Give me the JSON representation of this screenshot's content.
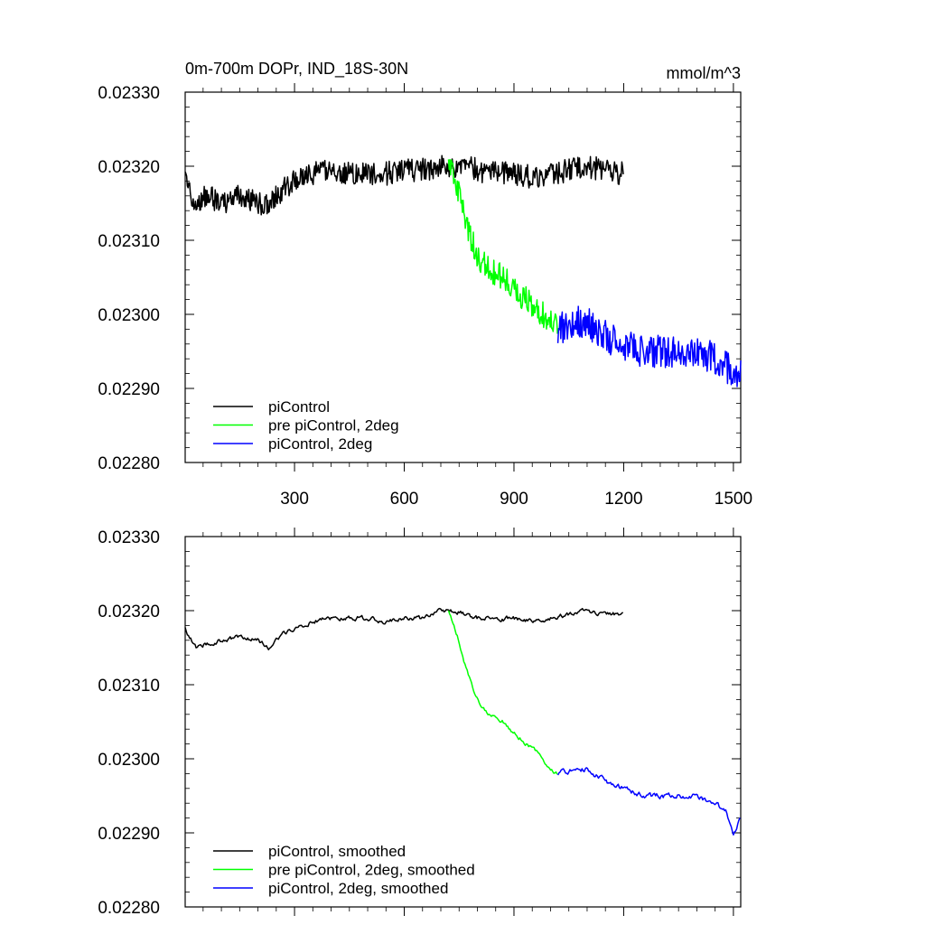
{
  "chart_data": [
    {
      "type": "line",
      "title": "0m-700m DOPr, IND_18S-30N",
      "units": "mmol/m^3",
      "xlim": [
        1,
        1520
      ],
      "ylim": [
        0.0228,
        0.0233
      ],
      "x_ticks": [
        300,
        600,
        900,
        1200,
        1500
      ],
      "x_tick_labels": [
        "300",
        "600",
        "900",
        "1200",
        "1500"
      ],
      "y_ticks": [
        0.0228,
        0.0229,
        0.023,
        0.0231,
        0.0232,
        0.0233
      ],
      "y_tick_labels": [
        "0.02280",
        "0.02290",
        "0.02300",
        "0.02310",
        "0.02320",
        "0.02330"
      ],
      "legend_position": "bottom-left",
      "series": [
        {
          "name": "piControl",
          "color": "#000000",
          "noise": 1.6e-05,
          "points": [
            [
              1,
              0.02318
            ],
            [
              30,
              0.02315
            ],
            [
              60,
              0.02316
            ],
            [
              100,
              0.02315
            ],
            [
              150,
              0.02316
            ],
            [
              200,
              0.02315
            ],
            [
              230,
              0.02315
            ],
            [
              270,
              0.02317
            ],
            [
              320,
              0.023185
            ],
            [
              350,
              0.02319
            ],
            [
              400,
              0.023195
            ],
            [
              450,
              0.02319
            ],
            [
              500,
              0.02319
            ],
            [
              550,
              0.02319
            ],
            [
              600,
              0.023195
            ],
            [
              650,
              0.023195
            ],
            [
              700,
              0.0232
            ],
            [
              750,
              0.0232
            ],
            [
              800,
              0.023195
            ],
            [
              850,
              0.02319
            ],
            [
              900,
              0.02319
            ],
            [
              950,
              0.023185
            ],
            [
              1000,
              0.02319
            ],
            [
              1050,
              0.023195
            ],
            [
              1100,
              0.0232
            ],
            [
              1150,
              0.023195
            ],
            [
              1200,
              0.02319
            ]
          ]
        },
        {
          "name": "pre piControl, 2deg",
          "color": "#00ff00",
          "noise": 1.8e-05,
          "points": [
            [
              721,
              0.02321
            ],
            [
              745,
              0.02317
            ],
            [
              770,
              0.02312
            ],
            [
              800,
              0.02308
            ],
            [
              830,
              0.02306
            ],
            [
              870,
              0.02305
            ],
            [
              910,
              0.02303
            ],
            [
              960,
              0.02301
            ],
            [
              1000,
              0.02299
            ],
            [
              1020,
              0.02298
            ]
          ]
        },
        {
          "name": "piControl, 2deg",
          "color": "#0000ff",
          "noise": 2.2e-05,
          "points": [
            [
              1020,
              0.02298
            ],
            [
              1060,
              0.02299
            ],
            [
              1100,
              0.02299
            ],
            [
              1150,
              0.02297
            ],
            [
              1200,
              0.02296
            ],
            [
              1250,
              0.02295
            ],
            [
              1300,
              0.02295
            ],
            [
              1350,
              0.02295
            ],
            [
              1400,
              0.02295
            ],
            [
              1450,
              0.02294
            ],
            [
              1480,
              0.02293
            ],
            [
              1500,
              0.022915
            ],
            [
              1520,
              0.02292
            ]
          ]
        }
      ]
    },
    {
      "type": "line",
      "xlim": [
        1,
        1520
      ],
      "ylim": [
        0.0228,
        0.0233
      ],
      "x_ticks": [
        300,
        600,
        900,
        1200,
        1500
      ],
      "y_ticks": [
        0.0228,
        0.0229,
        0.023,
        0.0231,
        0.0232,
        0.0233
      ],
      "y_tick_labels": [
        "0.02280",
        "0.02290",
        "0.02300",
        "0.02310",
        "0.02320",
        "0.02330"
      ],
      "legend_position": "bottom-left",
      "series": [
        {
          "name": "piControl, smoothed",
          "color": "#000000",
          "noise": 5.5e-06,
          "points": [
            [
              1,
              0.023175
            ],
            [
              30,
              0.02315
            ],
            [
              60,
              0.023155
            ],
            [
              100,
              0.02316
            ],
            [
              150,
              0.023165
            ],
            [
              200,
              0.02316
            ],
            [
              230,
              0.02315
            ],
            [
              270,
              0.02317
            ],
            [
              320,
              0.02318
            ],
            [
              350,
              0.023185
            ],
            [
              400,
              0.02319
            ],
            [
              450,
              0.02319
            ],
            [
              500,
              0.02319
            ],
            [
              550,
              0.023185
            ],
            [
              600,
              0.02319
            ],
            [
              650,
              0.02319
            ],
            [
              700,
              0.0232
            ],
            [
              750,
              0.023198
            ],
            [
              800,
              0.02319
            ],
            [
              850,
              0.023188
            ],
            [
              900,
              0.02319
            ],
            [
              950,
              0.023185
            ],
            [
              1000,
              0.02319
            ],
            [
              1050,
              0.023195
            ],
            [
              1100,
              0.0232
            ],
            [
              1150,
              0.023195
            ],
            [
              1200,
              0.023195
            ]
          ]
        },
        {
          "name": "pre piControl, 2deg, smoothed",
          "color": "#00ff00",
          "noise": 5e-06,
          "points": [
            [
              721,
              0.0232
            ],
            [
              745,
              0.023165
            ],
            [
              770,
              0.02312
            ],
            [
              800,
              0.02308
            ],
            [
              830,
              0.02306
            ],
            [
              870,
              0.02305
            ],
            [
              910,
              0.02303
            ],
            [
              960,
              0.02301
            ],
            [
              1000,
              0.022985
            ],
            [
              1020,
              0.02298
            ]
          ]
        },
        {
          "name": "piControl, 2deg, smoothed",
          "color": "#0000ff",
          "noise": 6.5e-06,
          "points": [
            [
              1020,
              0.02298
            ],
            [
              1060,
              0.022985
            ],
            [
              1100,
              0.022985
            ],
            [
              1150,
              0.02297
            ],
            [
              1200,
              0.02296
            ],
            [
              1250,
              0.02295
            ],
            [
              1300,
              0.02295
            ],
            [
              1350,
              0.02295
            ],
            [
              1400,
              0.02295
            ],
            [
              1450,
              0.02294
            ],
            [
              1480,
              0.02293
            ],
            [
              1500,
              0.0229
            ],
            [
              1520,
              0.02292
            ]
          ]
        }
      ]
    }
  ]
}
